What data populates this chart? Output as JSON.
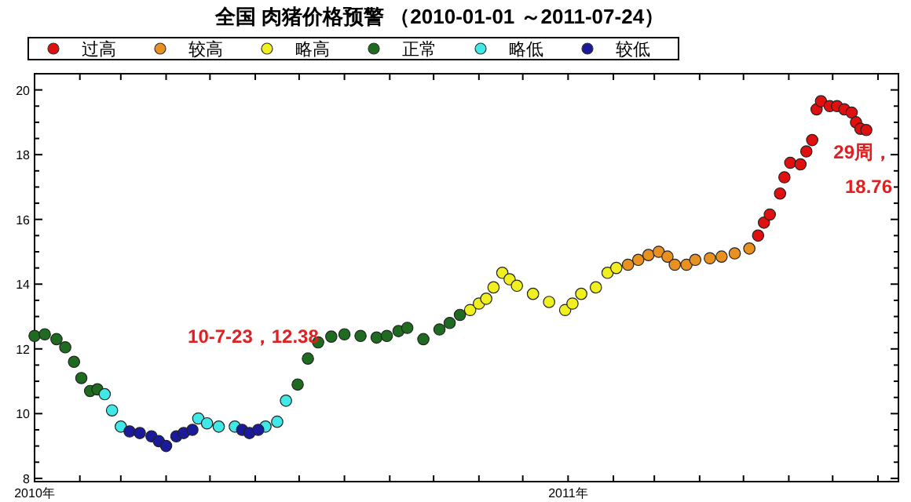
{
  "chart_data": {
    "type": "scatter",
    "title": "全国 肉猪价格预警 （2010-01-01 ～2011-07-24）",
    "legend": "top",
    "marker": "circle",
    "grid": false,
    "xlim": [
      "2010-01-01",
      "2011-08-15"
    ],
    "xticks": [
      {
        "value": "2010-01",
        "label": "2010年"
      },
      {
        "value": "2010-02",
        "label": null
      },
      {
        "value": "2010-03",
        "label": null
      },
      {
        "value": "2010-04",
        "label": null
      },
      {
        "value": "2010-05",
        "label": null
      },
      {
        "value": "2010-06",
        "label": null
      },
      {
        "value": "2010-07",
        "label": null
      },
      {
        "value": "2010-08",
        "label": null
      },
      {
        "value": "2010-09",
        "label": null
      },
      {
        "value": "2010-10",
        "label": null
      },
      {
        "value": "2010-11",
        "label": null
      },
      {
        "value": "2010-12",
        "label": null
      },
      {
        "value": "2011-01",
        "label": "2011年"
      },
      {
        "value": "2011-02",
        "label": null
      },
      {
        "value": "2011-03",
        "label": null
      },
      {
        "value": "2011-04",
        "label": null
      },
      {
        "value": "2011-05",
        "label": null
      },
      {
        "value": "2011-06",
        "label": null
      },
      {
        "value": "2011-07",
        "label": null
      },
      {
        "value": "2011-08",
        "label": null
      }
    ],
    "ylim": [
      7.9,
      20.5
    ],
    "yticks": [
      8,
      {
        "value": 8.5,
        "label": null
      },
      {
        "value": 9,
        "label": null
      },
      {
        "value": 9.5,
        "label": null
      },
      10,
      {
        "value": 10.5,
        "label": null
      },
      {
        "value": 11,
        "label": null
      },
      {
        "value": 11.5,
        "label": null
      },
      12,
      {
        "value": 12.5,
        "label": null
      },
      {
        "value": 13,
        "label": null
      },
      {
        "value": 13.5,
        "label": null
      },
      14,
      {
        "value": 14.5,
        "label": null
      },
      {
        "value": 15,
        "label": null
      },
      {
        "value": 15.5,
        "label": null
      },
      16,
      {
        "value": 16.5,
        "label": null
      },
      {
        "value": 17,
        "label": null
      },
      {
        "value": 17.5,
        "label": null
      },
      18,
      {
        "value": 18.5,
        "label": null
      },
      {
        "value": 19,
        "label": null
      },
      {
        "value": 19.5,
        "label": null
      },
      20
    ],
    "annotations": [
      {
        "text": "10-7-23，12.38",
        "x": "2010-07-23",
        "y": 12.38
      },
      {
        "text": "29周，\n18.76",
        "x": "2011-07-24",
        "y": 18.76
      }
    ],
    "series": [
      {
        "name": "过高",
        "color": "#e01010",
        "x": [
          "2011-05-11",
          "2011-05-15",
          "2011-05-19",
          "2011-05-26",
          "2011-05-29",
          "2011-06-02",
          "2011-06-09",
          "2011-06-13",
          "2011-06-17",
          "2011-06-20",
          "2011-06-23",
          "2011-06-29",
          "2011-07-04",
          "2011-07-09",
          "2011-07-14",
          "2011-07-17",
          "2011-07-20",
          "2011-07-24"
        ],
        "values": [
          15.5,
          15.9,
          16.15,
          16.8,
          17.3,
          17.75,
          17.7,
          18.1,
          18.45,
          19.4,
          19.65,
          19.5,
          19.5,
          19.4,
          19.3,
          19.0,
          18.8,
          18.76
        ]
      },
      {
        "name": "较高",
        "color": "#e89020",
        "x": [
          "2011-02-11",
          "2011-02-18",
          "2011-02-25",
          "2011-03-04",
          "2011-03-10",
          "2011-03-15",
          "2011-03-23",
          "2011-03-29",
          "2011-04-08",
          "2011-04-16",
          "2011-04-25",
          "2011-05-05"
        ],
        "values": [
          14.6,
          14.75,
          14.9,
          15.0,
          14.85,
          14.6,
          14.6,
          14.75,
          14.8,
          14.85,
          14.95,
          15.1
        ]
      },
      {
        "name": "略高",
        "color": "#f0f020",
        "x": [
          "2010-10-26",
          "2010-11-01",
          "2010-11-06",
          "2010-11-11",
          "2010-11-17",
          "2010-11-22",
          "2010-11-27",
          "2010-12-08",
          "2010-12-19",
          "2010-12-30",
          "2011-01-04",
          "2011-01-10",
          "2011-01-20",
          "2011-01-28",
          "2011-02-03"
        ],
        "values": [
          13.2,
          13.4,
          13.55,
          13.9,
          14.35,
          14.15,
          13.95,
          13.7,
          13.45,
          13.2,
          13.4,
          13.7,
          13.9,
          14.35,
          14.5
        ]
      },
      {
        "name": "正常",
        "color": "#1f6b1f",
        "x": [
          "2010-01-01",
          "2010-01-08",
          "2010-01-16",
          "2010-01-22",
          "2010-01-28",
          "2010-02-02",
          "2010-02-08",
          "2010-02-13",
          "2010-06-30",
          "2010-07-07",
          "2010-07-14",
          "2010-07-23",
          "2010-08-01",
          "2010-08-12",
          "2010-08-23",
          "2010-08-30",
          "2010-09-07",
          "2010-09-13",
          "2010-09-24",
          "2010-10-05",
          "2010-10-12",
          "2010-10-19"
        ],
        "values": [
          12.4,
          12.45,
          12.3,
          12.05,
          11.6,
          11.1,
          10.7,
          10.75,
          10.9,
          11.7,
          12.2,
          12.38,
          12.45,
          12.4,
          12.35,
          12.4,
          12.55,
          12.65,
          12.3,
          12.6,
          12.8,
          13.05
        ]
      },
      {
        "name": "略低",
        "color": "#40e8e8",
        "x": [
          "2010-02-18",
          "2010-02-23",
          "2010-03-01",
          "2010-04-23",
          "2010-04-29",
          "2010-05-07",
          "2010-05-18",
          "2010-06-08",
          "2010-06-16",
          "2010-06-22"
        ],
        "values": [
          10.6,
          10.1,
          9.6,
          9.85,
          9.7,
          9.6,
          9.6,
          9.6,
          9.75,
          10.4
        ]
      },
      {
        "name": "较低",
        "color": "#1a1a9a",
        "x": [
          "2010-03-07",
          "2010-03-14",
          "2010-03-22",
          "2010-03-27",
          "2010-04-01",
          "2010-04-08",
          "2010-04-13",
          "2010-04-19",
          "2010-05-23",
          "2010-05-28",
          "2010-06-03"
        ],
        "values": [
          9.45,
          9.4,
          9.3,
          9.15,
          9.0,
          9.3,
          9.4,
          9.5,
          9.5,
          9.4,
          9.5
        ]
      }
    ]
  }
}
